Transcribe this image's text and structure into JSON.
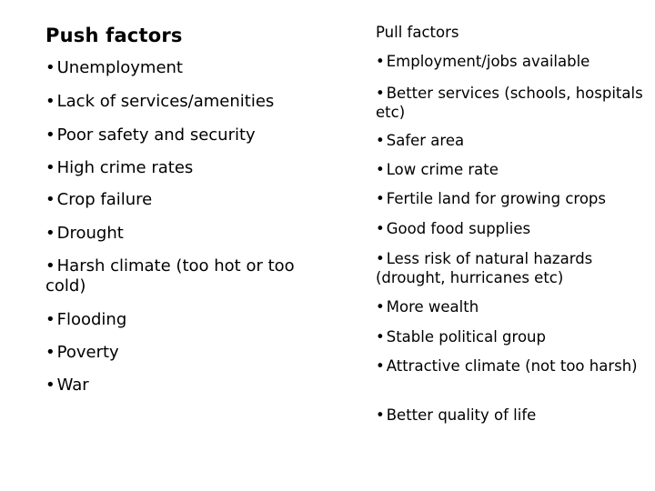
{
  "push": {
    "heading": "Push factors",
    "items": [
      "Unemployment",
      "Lack of services/amenities",
      "Poor safety and security",
      "High crime rates",
      "Crop failure",
      "Drought",
      "Harsh climate (too hot or too cold)",
      "Flooding",
      "Poverty",
      "War"
    ]
  },
  "pull": {
    "heading": "Pull factors",
    "items": [
      "Employment/jobs available",
      "Better services (schools, hospitals etc)",
      "Safer area",
      "Low crime rate",
      "Fertile land for growing crops",
      "Good food supplies",
      "Less risk of natural hazards (drought, hurricanes etc)",
      "More wealth",
      "Stable political group",
      "Attractive climate (not too harsh)",
      "Better quality of life"
    ]
  },
  "bullet_char": "•"
}
